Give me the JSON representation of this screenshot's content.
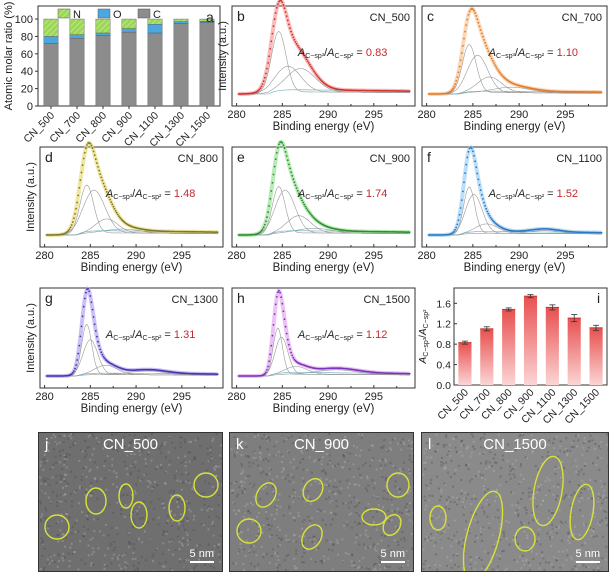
{
  "chart_data": [
    {
      "id": "a",
      "type": "bar",
      "stacked": true,
      "panel_letter": "a",
      "ylabel": "Atomic molar ratio (%)",
      "xlabel": "",
      "ylim": [
        0,
        115
      ],
      "yticks": [
        0,
        20,
        40,
        60,
        80,
        100
      ],
      "categories": [
        "CN_500",
        "CN_700",
        "CN_800",
        "CN_900",
        "CN_1100",
        "CN_1300",
        "CN_1500"
      ],
      "legend": [
        "N",
        "O",
        "C"
      ],
      "legend_position": "top",
      "series": [
        {
          "name": "C",
          "color": "#8c8c8c",
          "values": [
            72,
            78,
            81,
            85,
            84,
            95,
            96
          ]
        },
        {
          "name": "O",
          "color": "#4aa8e0",
          "values": [
            8,
            4,
            3,
            4,
            10,
            2,
            1.5
          ]
        },
        {
          "name": "N",
          "color": "#8fd14f",
          "values": [
            20,
            18,
            16,
            11,
            6,
            3,
            2.5
          ]
        }
      ]
    },
    {
      "id": "b",
      "type": "line",
      "panel_letter": "b",
      "sample": "CN_500",
      "ratio_label": "A",
      "ratio_value": "0.83",
      "color": "#d0312d",
      "envelope": "#f5a0a0",
      "xlabel": "Binding energy (eV)",
      "ylabel": "Intensity (a.u.)",
      "xlim": [
        279.5,
        299.5
      ],
      "xticks": [
        280,
        285,
        290,
        295
      ],
      "peaks": [
        {
          "center": 284.6,
          "height": 0.78,
          "width": 0.8
        },
        {
          "center": 285.6,
          "height": 0.33,
          "width": 1.4
        },
        {
          "center": 287.0,
          "height": 0.3,
          "width": 1.6
        }
      ],
      "tail": 0.06
    },
    {
      "id": "c",
      "type": "line",
      "panel_letter": "c",
      "sample": "CN_700",
      "ratio_value": "1.10",
      "color": "#e07a2b",
      "envelope": "#f7c89a",
      "xlabel": "Binding energy (eV)",
      "ylabel": "Intensity (a.u.)",
      "xlim": [
        279.5,
        299.5
      ],
      "xticks": [
        280,
        285,
        290,
        295
      ],
      "peaks": [
        {
          "center": 284.6,
          "height": 0.62,
          "width": 0.75
        },
        {
          "center": 285.5,
          "height": 0.48,
          "width": 1.1
        },
        {
          "center": 286.8,
          "height": 0.2,
          "width": 1.3
        },
        {
          "center": 289.2,
          "height": 0.07,
          "width": 2.0
        }
      ],
      "tail": 0.04
    },
    {
      "id": "d",
      "type": "line",
      "panel_letter": "d",
      "sample": "CN_800",
      "ratio_value": "1.48",
      "color": "#7a7a2a",
      "envelope": "#e9dc7a",
      "xlabel": "Binding energy (eV)",
      "ylabel": "Intensity (a.u.)",
      "xlim": [
        279.5,
        299.5
      ],
      "xticks": [
        280,
        285,
        290,
        295
      ],
      "peaks": [
        {
          "center": 284.6,
          "height": 0.62,
          "width": 0.75
        },
        {
          "center": 285.4,
          "height": 0.55,
          "width": 1.2
        },
        {
          "center": 286.8,
          "height": 0.18,
          "width": 1.2
        },
        {
          "center": 288.5,
          "height": 0.05,
          "width": 1.8
        }
      ],
      "tail": 0.06
    },
    {
      "id": "e",
      "type": "line",
      "panel_letter": "e",
      "sample": "CN_900",
      "ratio_value": "1.74",
      "color": "#2e8b2e",
      "envelope": "#9be39b",
      "xlabel": "Binding energy (eV)",
      "ylabel": "Intensity (a.u.)",
      "xlim": [
        279.5,
        299.5
      ],
      "xticks": [
        280,
        285,
        290,
        295
      ],
      "peaks": [
        {
          "center": 284.6,
          "height": 0.6,
          "width": 0.7
        },
        {
          "center": 285.3,
          "height": 0.55,
          "width": 1.1
        },
        {
          "center": 286.8,
          "height": 0.22,
          "width": 1.3
        },
        {
          "center": 288.5,
          "height": 0.06,
          "width": 1.8
        }
      ],
      "tail": 0.06
    },
    {
      "id": "f",
      "type": "line",
      "panel_letter": "f",
      "sample": "CN_1100",
      "ratio_value": "1.52",
      "color": "#2a78c2",
      "envelope": "#9fd0f5",
      "xlabel": "Binding energy (eV)",
      "ylabel": "Intensity (a.u.)",
      "xlim": [
        279.5,
        299.5
      ],
      "xticks": [
        280,
        285,
        290,
        295
      ],
      "peaks": [
        {
          "center": 284.6,
          "height": 0.6,
          "width": 0.6
        },
        {
          "center": 285.1,
          "height": 0.5,
          "width": 0.9
        },
        {
          "center": 286.5,
          "height": 0.12,
          "width": 1.2
        },
        {
          "center": 292.8,
          "height": 0.04,
          "width": 1.5
        }
      ],
      "tail": 0.05
    },
    {
      "id": "g",
      "type": "line",
      "panel_letter": "g",
      "sample": "CN_1300",
      "ratio_value": "1.31",
      "color": "#4b32b0",
      "envelope": "#b6a6f0",
      "xlabel": "Binding energy (eV)",
      "ylabel": "Intensity (a.u.)",
      "xlim": [
        279.5,
        299.5
      ],
      "xticks": [
        280,
        285,
        290,
        295
      ],
      "peaks": [
        {
          "center": 284.6,
          "height": 0.65,
          "width": 0.55
        },
        {
          "center": 285.0,
          "height": 0.45,
          "width": 0.8
        },
        {
          "center": 286.7,
          "height": 0.12,
          "width": 1.2
        },
        {
          "center": 291.3,
          "height": 0.05,
          "width": 2.0
        }
      ],
      "tail": 0.04
    },
    {
      "id": "h",
      "type": "line",
      "panel_letter": "h",
      "sample": "CN_1500",
      "ratio_value": "1.12",
      "color": "#7b34b8",
      "envelope": "#e2a6f2",
      "xlabel": "Binding energy (eV)",
      "ylabel": "Intensity (a.u.)",
      "xlim": [
        279.5,
        299.5
      ],
      "xticks": [
        280,
        285,
        290,
        295
      ],
      "peaks": [
        {
          "center": 284.5,
          "height": 0.6,
          "width": 0.5
        },
        {
          "center": 284.9,
          "height": 0.48,
          "width": 0.7
        },
        {
          "center": 286.5,
          "height": 0.1,
          "width": 1.2
        },
        {
          "center": 291.0,
          "height": 0.06,
          "width": 2.2
        }
      ],
      "tail": 0.05
    },
    {
      "id": "i",
      "type": "bar",
      "panel_letter": "i",
      "ylabel": "A(C-sp3)/A(C-sp2)",
      "xlabel": "",
      "ylim": [
        0,
        1.9
      ],
      "yticks": [
        "0.0",
        "0.4",
        "0.8",
        "1.2",
        "1.6"
      ],
      "categories": [
        "CN_500",
        "CN_700",
        "CN_800",
        "CN_900",
        "CN_1100",
        "CN_1300",
        "CN_1500"
      ],
      "values": [
        0.83,
        1.1,
        1.48,
        1.74,
        1.52,
        1.31,
        1.12
      ],
      "errors": [
        0.03,
        0.04,
        0.03,
        0.03,
        0.05,
        0.07,
        0.05
      ],
      "color": "#e8504f"
    }
  ],
  "spectra_common": {
    "ratio_text_prefix": "A",
    "ratio_sub1": "C−sp³",
    "ratio_sub2": "C−sp²",
    "equals": " = "
  },
  "tem": [
    {
      "letter": "j",
      "title": "CN_500",
      "scale": "5 nm",
      "background": "#6f6f6f"
    },
    {
      "letter": "k",
      "title": "CN_900",
      "scale": "5 nm",
      "background": "#7e7e7e"
    },
    {
      "letter": "l",
      "title": "CN_1500",
      "scale": "5 nm",
      "background": "#8a8a8a"
    }
  ],
  "colors": {
    "ellipse": "#d9e23a",
    "ratio_value": "#c4292e",
    "axis": "#333333"
  }
}
